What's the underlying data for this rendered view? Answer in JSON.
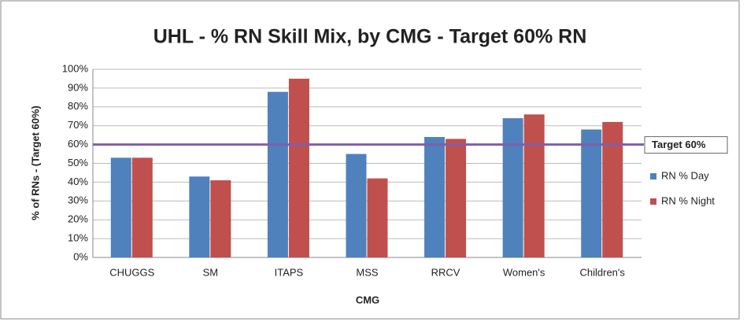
{
  "chart_data": {
    "type": "bar",
    "title": "UHL - % RN Skill Mix, by CMG - Target 60% RN",
    "x_label": "CMG",
    "y_label": "% of RNs - (Target 60%)",
    "categories": [
      "CHUGGS",
      "SM",
      "ITAPS",
      "MSS",
      "RRCV",
      "Women's",
      "Children's"
    ],
    "series": [
      {
        "name": "RN % Day",
        "color": "#4f81bd",
        "values": [
          53,
          43,
          88,
          55,
          64,
          74,
          68
        ]
      },
      {
        "name": "RN % Night",
        "color": "#c0504d",
        "values": [
          53,
          41,
          95,
          42,
          63,
          76,
          72
        ]
      }
    ],
    "target": {
      "value": 60,
      "label": "Target 60%",
      "color": "#7f5fa8"
    },
    "ylim": [
      0,
      100
    ],
    "yticks": [
      {
        "value": 0,
        "label": "0%"
      },
      {
        "value": 10,
        "label": "10%"
      },
      {
        "value": 20,
        "label": "20%"
      },
      {
        "value": 30,
        "label": "30%"
      },
      {
        "value": 40,
        "label": "40%"
      },
      {
        "value": 50,
        "label": "50%"
      },
      {
        "value": 60,
        "label": "60%"
      },
      {
        "value": 70,
        "label": "70%"
      },
      {
        "value": 80,
        "label": "80%"
      },
      {
        "value": 90,
        "label": "90%"
      },
      {
        "value": 100,
        "label": "100%"
      }
    ],
    "grid": true
  }
}
